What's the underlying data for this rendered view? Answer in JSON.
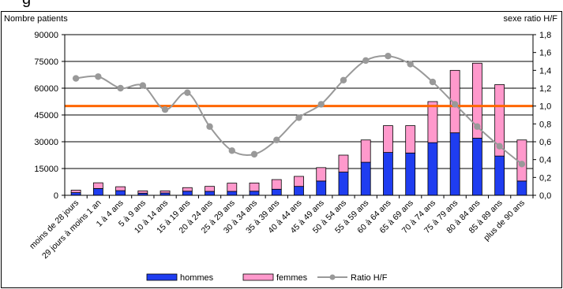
{
  "header_text": "g",
  "chart_data": {
    "type": "bar",
    "stacked": true,
    "categories": [
      "moins de 28 jours",
      "29 jours à moins 1 an",
      "1 à 4 ans",
      "5 à 9 ans",
      "10 à 14 ans",
      "15 à 19 ans",
      "20 à 24 ans",
      "25 à 29 ans",
      "30 à 34 ans",
      "35 à 39 ans",
      "40 à 44 ans",
      "45 à 49 ans",
      "50 à 54 ans",
      "55 à 59 ans",
      "60 à 64 ans",
      "65 à 69 ans",
      "70 à 74 ans",
      "75 à 79 ans",
      "80 à 84 ans",
      "85 à 89 ans",
      "plus de 90 ans"
    ],
    "series": [
      {
        "name": "hommes",
        "color": "#1f3df0",
        "axis": "left",
        "values": [
          1500,
          3800,
          2600,
          1200,
          1300,
          2300,
          2200,
          2200,
          2300,
          3400,
          5000,
          8000,
          13000,
          18500,
          24000,
          23700,
          29500,
          35000,
          32000,
          22000,
          8000
        ]
      },
      {
        "name": "femmes",
        "color": "#ff99cc",
        "axis": "left",
        "values": [
          1400,
          3200,
          2200,
          1300,
          1200,
          2000,
          2800,
          4600,
          4600,
          5400,
          5600,
          7500,
          9500,
          12500,
          15000,
          15300,
          23000,
          35000,
          42000,
          40000,
          23000
        ]
      },
      {
        "name": "Ratio H/F",
        "type": "line",
        "color": "#999999",
        "axis": "right",
        "values": [
          1.31,
          1.33,
          1.2,
          1.23,
          0.96,
          1.15,
          0.77,
          0.5,
          0.46,
          0.62,
          0.87,
          1.02,
          1.29,
          1.51,
          1.56,
          1.47,
          1.27,
          1.02,
          0.77,
          0.55,
          0.35
        ]
      }
    ],
    "reference_line": {
      "value": 1.0,
      "axis": "right",
      "color": "#ff6600"
    },
    "ylabel": "Nombre patients",
    "y2label": "sexe ratio H/F",
    "ylim": [
      0,
      90000
    ],
    "yticks": [
      0,
      15000,
      30000,
      45000,
      60000,
      75000,
      90000
    ],
    "y2lim": [
      0,
      1.8
    ],
    "y2ticks": [
      "0,0",
      "0,2",
      "0,4",
      "0,6",
      "0,8",
      "1,0",
      "1,2",
      "1,4",
      "1,6",
      "1,8"
    ],
    "grid": true,
    "legend": {
      "position": "bottom",
      "entries": [
        "hommes",
        "femmes",
        "Ratio H/F"
      ]
    }
  }
}
